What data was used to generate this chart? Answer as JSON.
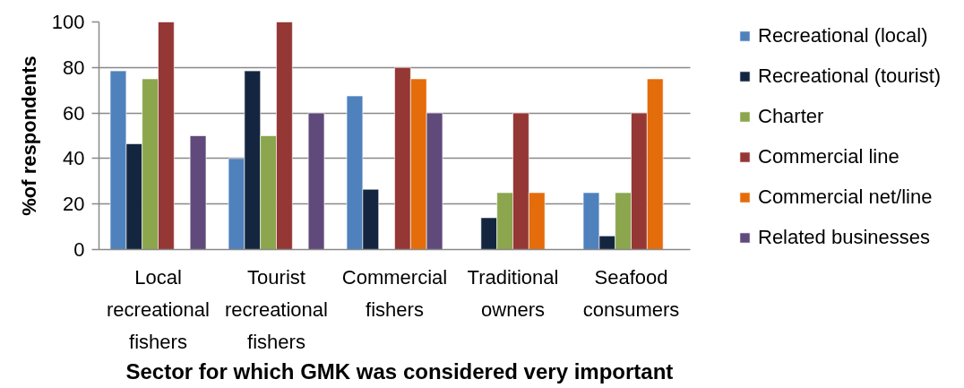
{
  "chart_data": {
    "type": "bar",
    "xlabel": "Sector for which GMK was considered very important",
    "ylabel": "%of respondents",
    "categories": [
      "Local recreational fishers",
      "Tourist recreational fishers",
      "Commercial fishers",
      "Traditional owners",
      "Seafood consumers"
    ],
    "ylim": [
      0,
      100
    ],
    "yticks": [
      0,
      20,
      40,
      60,
      80,
      100
    ],
    "grid": "y",
    "legend": "right",
    "series": [
      {
        "name": "Recreational (local)",
        "color": "#4f81bd",
        "values": [
          78.5,
          40,
          67.5,
          null,
          25
        ]
      },
      {
        "name": "Recreational (tourist)",
        "color": "#14263f",
        "values": [
          46.5,
          78.5,
          26.5,
          14,
          6
        ]
      },
      {
        "name": "Charter",
        "color": "#8ba64c",
        "values": [
          75,
          50,
          null,
          25,
          25
        ]
      },
      {
        "name": "Commercial line",
        "color": "#953735",
        "values": [
          100,
          100,
          80,
          60,
          60
        ]
      },
      {
        "name": "Commercial net/line",
        "color": "#e46c0a",
        "values": [
          null,
          null,
          75,
          25,
          75
        ]
      },
      {
        "name": "Related businesses",
        "color": "#604a7b",
        "values": [
          50,
          60,
          60,
          null,
          null
        ]
      }
    ]
  }
}
